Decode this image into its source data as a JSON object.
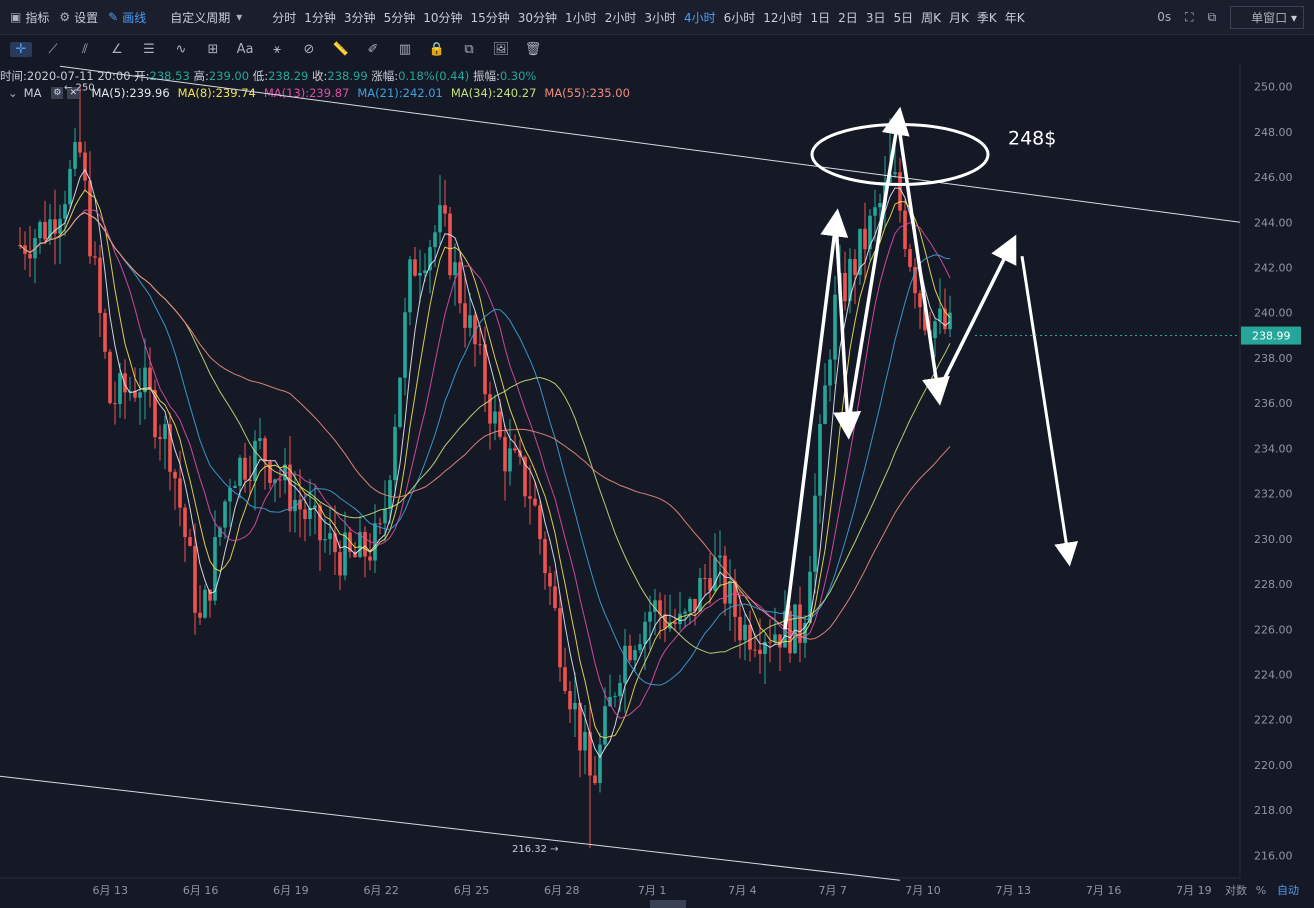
{
  "topbar": {
    "indicators": "指标",
    "settings": "设置",
    "drawing": "画线",
    "custom_period": "自定义周期",
    "periods": [
      "分时",
      "1分钟",
      "3分钟",
      "5分钟",
      "10分钟",
      "15分钟",
      "30分钟",
      "1小时",
      "2小时",
      "3小时",
      "4小时",
      "6小时",
      "12小时",
      "1日",
      "2日",
      "3日",
      "5日",
      "周K",
      "月K",
      "季K",
      "年K"
    ],
    "active_period": "4小时",
    "countdown": "0s",
    "window_mode": "单窗口"
  },
  "info": {
    "time_label": "时间:",
    "time": "2020-07-11 20:00",
    "open_label": "开:",
    "open": "238.53",
    "high_label": "高:",
    "high": "239.00",
    "low_label": "低:",
    "low": "238.29",
    "close_label": "收:",
    "close": "238.99",
    "change_label": "涨幅:",
    "change": "0.18%(0.44)",
    "amp_label": "振幅:",
    "amp": "0.30%"
  },
  "ma_legend": {
    "name": "MA",
    "items": [
      {
        "label": "MA(5):239.96",
        "color": "#e6e8ee"
      },
      {
        "label": "MA(8):239.74",
        "color": "#f0e050"
      },
      {
        "label": "MA(13):239.87",
        "color": "#e04ca8"
      },
      {
        "label": "MA(21):242.01",
        "color": "#3ea2dc"
      },
      {
        "label": "MA(34):240.27",
        "color": "#c4e07a"
      },
      {
        "label": "MA(55):235.00",
        "color": "#f08c7c"
      }
    ]
  },
  "chart_data": {
    "type": "candlestick",
    "ylim": [
      215,
      251
    ],
    "y_ticks": [
      "216.00",
      "218.00",
      "220.00",
      "222.00",
      "224.00",
      "226.00",
      "228.00",
      "230.00",
      "232.00",
      "234.00",
      "236.00",
      "238.00",
      "240.00",
      "242.00",
      "244.00",
      "246.00",
      "248.00",
      "250.00"
    ],
    "x_ticks": [
      "6月 13",
      "6月 16",
      "6月 19",
      "6月 22",
      "6月 25",
      "6月 28",
      "7月 1",
      "7月 4",
      "7月 7",
      "7月 10",
      "7月 13",
      "7月 16",
      "7月 19"
    ],
    "current_price": "238.99",
    "high_marker": "250",
    "low_marker": "216.32",
    "annotation_text": "248$",
    "up_color": "#26a69a",
    "down_color": "#ef5350",
    "ma_colors": [
      "#e6e8ee",
      "#f0e050",
      "#e04ca8",
      "#3ea2dc",
      "#c4e07a",
      "#f08c7c"
    ],
    "close_path": [
      {
        "date": "2020-06-10",
        "close": 243
      },
      {
        "date": "2020-06-11",
        "close": 244
      },
      {
        "date": "2020-06-12",
        "close": 247
      },
      {
        "date": "2020-06-13",
        "close": 236
      },
      {
        "date": "2020-06-14",
        "close": 237
      },
      {
        "date": "2020-06-15",
        "close": 234
      },
      {
        "date": "2020-06-16",
        "close": 226
      },
      {
        "date": "2020-06-17",
        "close": 233
      },
      {
        "date": "2020-06-18",
        "close": 234
      },
      {
        "date": "2020-06-19",
        "close": 232
      },
      {
        "date": "2020-06-20",
        "close": 230
      },
      {
        "date": "2020-06-21",
        "close": 229
      },
      {
        "date": "2020-06-22",
        "close": 230
      },
      {
        "date": "2020-06-23",
        "close": 242
      },
      {
        "date": "2020-06-24",
        "close": 244
      },
      {
        "date": "2020-06-25",
        "close": 239
      },
      {
        "date": "2020-06-26",
        "close": 234
      },
      {
        "date": "2020-06-27",
        "close": 232
      },
      {
        "date": "2020-06-28",
        "close": 225
      },
      {
        "date": "2020-06-29",
        "close": 219
      },
      {
        "date": "2020-06-30",
        "close": 225
      },
      {
        "date": "2020-07-01",
        "close": 227
      },
      {
        "date": "2020-07-02",
        "close": 226
      },
      {
        "date": "2020-07-03",
        "close": 229
      },
      {
        "date": "2020-07-04",
        "close": 226
      },
      {
        "date": "2020-07-05",
        "close": 226
      },
      {
        "date": "2020-07-06",
        "close": 226
      },
      {
        "date": "2020-07-07",
        "close": 240
      },
      {
        "date": "2020-07-08",
        "close": 243
      },
      {
        "date": "2020-07-09",
        "close": 246
      },
      {
        "date": "2020-07-10",
        "close": 240
      },
      {
        "date": "2020-07-11",
        "close": 239
      }
    ]
  },
  "axis_footer": {
    "log": "对数",
    "pct": "%",
    "auto": "自动"
  }
}
